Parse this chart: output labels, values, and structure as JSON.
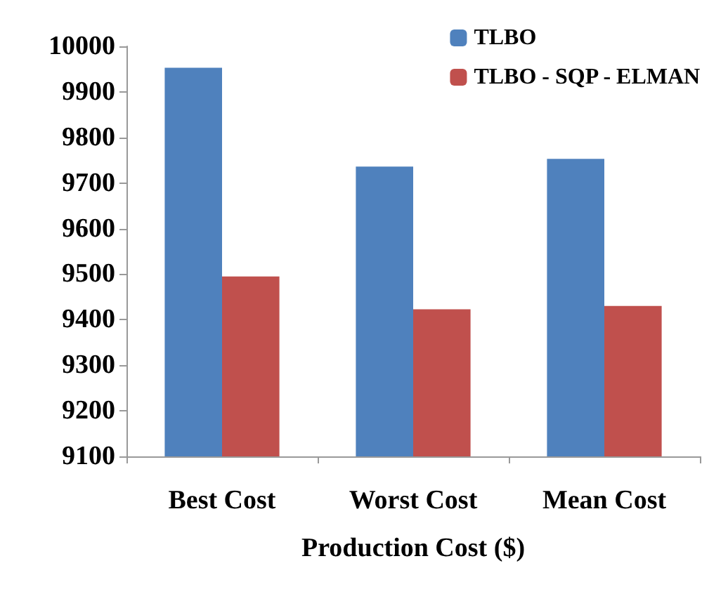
{
  "chart_data": {
    "type": "bar",
    "xlabel": "Production Cost ($)",
    "categories": [
      "Best Cost",
      "Worst Cost",
      "Mean Cost"
    ],
    "series": [
      {
        "name": "TLBO",
        "color": "#4f81bd",
        "values": [
          9953,
          9736,
          9753
        ]
      },
      {
        "name": "TLBO - SQP - ELMAN",
        "color": "#c0504d",
        "values": [
          9495,
          9423,
          9430
        ]
      }
    ],
    "ylim": [
      9100,
      10000
    ],
    "yticks": [
      9100,
      9200,
      9300,
      9400,
      9500,
      9600,
      9700,
      9800,
      9900,
      10000
    ],
    "grid": false,
    "legend": "top right"
  }
}
